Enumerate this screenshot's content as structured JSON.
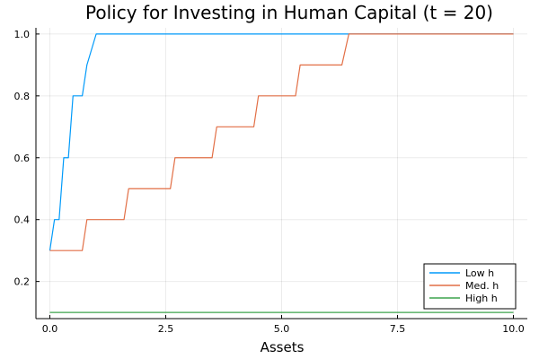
{
  "chart_data": {
    "type": "line",
    "title": "Policy for Investing in Human Capital (t = 20)",
    "xlabel": "Assets",
    "ylabel": "",
    "xlim": [
      -0.3,
      10.3
    ],
    "ylim": [
      0.08,
      1.02
    ],
    "xticks": [
      0,
      2.5,
      5,
      7.5,
      10
    ],
    "xtick_labels": [
      "0.0",
      "2.5",
      "5.0",
      "7.5",
      "10.0"
    ],
    "yticks": [
      0.2,
      0.4,
      0.6,
      0.8,
      1.0
    ],
    "ytick_labels": [
      "0.2",
      "0.4",
      "0.6",
      "0.8",
      "1.0"
    ],
    "grid": true,
    "legend_position": "bottom-right",
    "series": [
      {
        "name": "Low h",
        "color": "#009AFA",
        "x": [
          0.0,
          0.1,
          0.2,
          0.3,
          0.4,
          0.5,
          0.7,
          0.8,
          1.0,
          10.0
        ],
        "y": [
          0.3,
          0.4,
          0.4,
          0.6,
          0.6,
          0.8,
          0.8,
          0.9,
          1.0,
          1.0
        ]
      },
      {
        "name": "Med. h",
        "color": "#E26F46",
        "x": [
          0.0,
          0.7,
          0.8,
          1.6,
          1.7,
          2.6,
          2.7,
          3.5,
          3.6,
          4.4,
          4.5,
          5.3,
          5.4,
          6.3,
          6.45,
          10.0
        ],
        "y": [
          0.3,
          0.3,
          0.4,
          0.4,
          0.5,
          0.5,
          0.6,
          0.6,
          0.7,
          0.7,
          0.8,
          0.8,
          0.9,
          0.9,
          1.0,
          1.0
        ]
      },
      {
        "name": "High h",
        "color": "#3DA44D",
        "x": [
          0.0,
          10.0
        ],
        "y": [
          0.1,
          0.1
        ]
      }
    ]
  }
}
